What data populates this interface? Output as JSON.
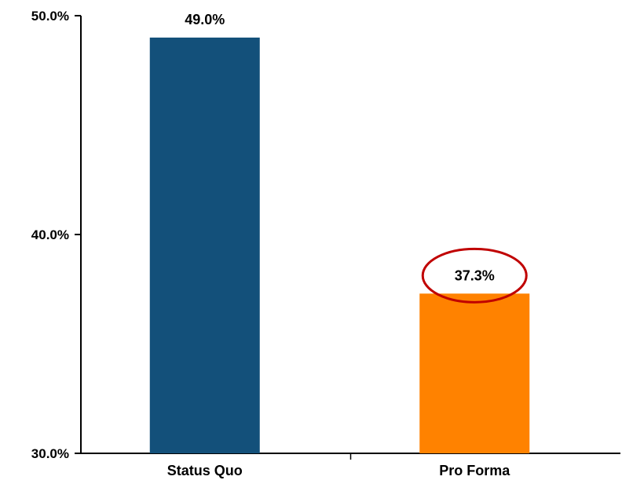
{
  "chart_data": {
    "type": "bar",
    "title": "",
    "xlabel": "",
    "ylabel": "",
    "categories": [
      "Status Quo",
      "Pro Forma"
    ],
    "values": [
      49.0,
      37.3
    ],
    "data_labels": [
      "49.0%",
      "37.3%"
    ],
    "colors": [
      "#13507A",
      "#FF8200"
    ],
    "ylim": [
      30,
      50
    ],
    "yticks": [
      30,
      40,
      50
    ],
    "ytick_labels": [
      "30.0%",
      "40.0%",
      "50.0%"
    ],
    "grid": false,
    "legend": "none",
    "highlight": {
      "category_index": 1,
      "shape": "ellipse",
      "color": "#C00000"
    }
  }
}
